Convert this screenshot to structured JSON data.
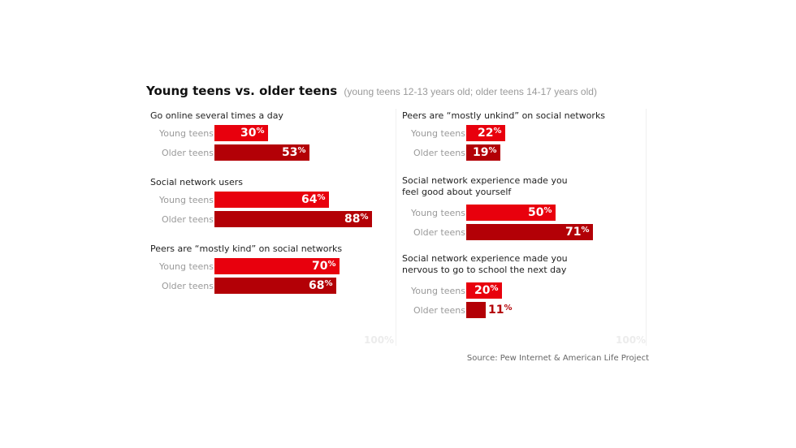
{
  "title": "Young teens vs. older teens",
  "subtitle": "(young teens 12-13 years old; older teens 14-17 years old)",
  "source": "Source: Pew Internet & American Life Project",
  "max_label": "100%",
  "colors": {
    "young": "#e8000d",
    "older": "#b30006"
  },
  "chart_data": {
    "type": "bar",
    "orientation": "horizontal",
    "unit": "%",
    "xlim": [
      0,
      100
    ],
    "series_labels": [
      "Young teens",
      "Older teens"
    ],
    "groups": [
      {
        "label": "Go online several times a day",
        "values": [
          30,
          53
        ]
      },
      {
        "label": "Social network users",
        "values": [
          64,
          88
        ]
      },
      {
        "label": "Peers are “mostly kind” on social networks",
        "values": [
          70,
          68
        ]
      },
      {
        "label": "Peers are “mostly unkind” on social networks",
        "values": [
          22,
          19
        ]
      },
      {
        "label": "Social network experience made you feel good about yourself",
        "values": [
          50,
          71
        ]
      },
      {
        "label": "Social network experience made you nervous to go to school the next day",
        "values": [
          20,
          11
        ]
      }
    ]
  }
}
